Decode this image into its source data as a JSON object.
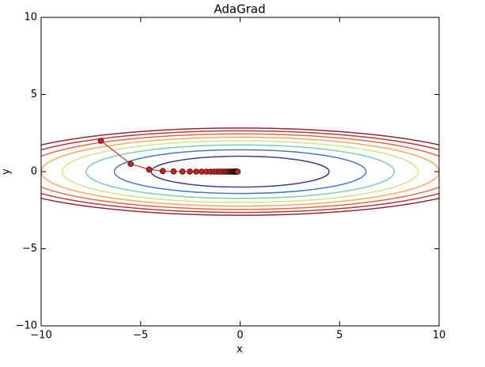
{
  "chart_data": {
    "type": "line",
    "title": "AdaGrad",
    "x_label": "x",
    "y_label": "y",
    "xlim": [
      -10,
      10
    ],
    "ylim": [
      -10,
      10
    ],
    "xticks": [
      {
        "value": -10,
        "label": "−10"
      },
      {
        "value": -5,
        "label": "−5"
      },
      0,
      5,
      10
    ],
    "yticks": [
      {
        "value": -10,
        "label": "−10"
      },
      {
        "value": -5,
        "label": "−5"
      },
      0,
      5,
      10
    ],
    "color": "#e03030",
    "marker_color": "#cc2020",
    "x": [
      -7,
      -5.5,
      -4.573,
      -3.888,
      -3.345,
      -2.899,
      -2.525,
      -2.206,
      -1.932,
      -1.696,
      -1.49,
      -1.31,
      -1.153,
      -1.016,
      -0.895,
      -0.789,
      -0.696,
      -0.614,
      -0.542,
      -0.478,
      -0.422,
      -0.372,
      -0.328,
      -0.29,
      -0.256,
      -0.226,
      -0.199,
      -0.176,
      -0.155,
      -0.137,
      -0.121
    ],
    "values": [
      2,
      0.5,
      0.136,
      0.037,
      0.01,
      0.003,
      0.001,
      0,
      0,
      0,
      0,
      0,
      0,
      0,
      0,
      0,
      0,
      0,
      0,
      0,
      0,
      0,
      0,
      0,
      0,
      0,
      0,
      0,
      0,
      0,
      0
    ],
    "contours": [
      {
        "level": 1,
        "color": "#3b3f8c"
      },
      {
        "level": 2,
        "color": "#4a78bd"
      },
      {
        "level": 3,
        "color": "#80cbb5"
      },
      {
        "level": 4,
        "color": "#cfe58a"
      },
      {
        "level": 5,
        "color": "#f9a85e"
      },
      {
        "level": 6,
        "color": "#e06a48"
      },
      {
        "level": 7,
        "color": "#b53a3a"
      },
      {
        "level": 8,
        "color": "#8e2a35"
      }
    ]
  }
}
